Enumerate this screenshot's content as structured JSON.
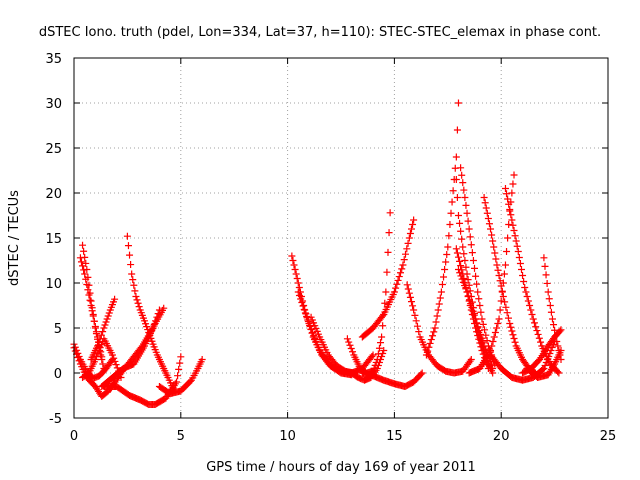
{
  "chart_data": {
    "type": "scatter",
    "title": "dSTEC Iono. truth (pdel, Lon=334, Lat=37, h=110): STEC-STEC_elemax in phase cont.",
    "xlabel": "GPS time / hours of day 169 of year 2011",
    "ylabel": "dSTEC  / TECUs",
    "xlim": [
      0,
      25
    ],
    "ylim": [
      -5,
      35
    ],
    "xticks": [
      0,
      5,
      10,
      15,
      20,
      25
    ],
    "yticks": [
      -5,
      0,
      5,
      10,
      15,
      20,
      25,
      30,
      35
    ],
    "xtick_labels": [
      "0",
      "5",
      "10",
      "15",
      "20",
      "25"
    ],
    "ytick_labels": [
      "-5",
      "0",
      "5",
      "10",
      "15",
      "20",
      "25",
      "30",
      "35"
    ],
    "grid": true,
    "legend": "none",
    "marker": "plus",
    "color": "#ff0000",
    "series": [
      {
        "x": [
          0.0,
          0.3,
          0.6,
          0.9,
          1.2,
          1.5,
          1.8
        ],
        "y": [
          3.2,
          1.5,
          0.2,
          -0.6,
          -0.3,
          0.5,
          1.5
        ]
      },
      {
        "x": [
          0.4,
          0.6,
          0.8,
          1.0,
          1.2,
          1.4
        ],
        "y": [
          14.2,
          11.5,
          8.0,
          5.0,
          2.5,
          0.5
        ]
      },
      {
        "x": [
          0.3,
          0.5,
          0.8,
          1.1,
          1.3
        ],
        "y": [
          12.8,
          11.0,
          7.5,
          4.0,
          1.8
        ]
      },
      {
        "x": [
          0.0,
          0.3,
          0.6,
          1.0,
          1.3,
          1.6,
          1.9
        ],
        "y": [
          2.8,
          1.0,
          -0.5,
          -1.5,
          -2.6,
          -2.0,
          -1.0
        ]
      },
      {
        "x": [
          0.4,
          0.7,
          1.0,
          1.4,
          1.8,
          2.2
        ],
        "y": [
          -0.5,
          0.0,
          1.5,
          3.8,
          2.0,
          -0.5
        ]
      },
      {
        "x": [
          0.8,
          1.1,
          1.4,
          1.7,
          1.9
        ],
        "y": [
          1.5,
          3.0,
          5.0,
          7.0,
          8.2
        ]
      },
      {
        "x": [
          2.5,
          2.7,
          2.9,
          3.1,
          3.3,
          3.5,
          3.7,
          3.9,
          4.1,
          4.4,
          4.7
        ],
        "y": [
          15.2,
          11.0,
          8.5,
          7.0,
          5.8,
          4.5,
          3.2,
          2.0,
          1.0,
          -0.5,
          -2.0
        ]
      },
      {
        "x": [
          1.3,
          1.8,
          2.3,
          2.8,
          3.3,
          3.8,
          4.2
        ],
        "y": [
          -1.5,
          -0.5,
          0.5,
          1.0,
          3.0,
          5.5,
          7.2
        ]
      },
      {
        "x": [
          1.7,
          2.2,
          2.7,
          3.2,
          3.7,
          4.0
        ],
        "y": [
          -1.8,
          0.0,
          1.5,
          3.0,
          5.0,
          7.0
        ]
      },
      {
        "x": [
          1.4,
          2.0,
          2.6,
          3.1,
          3.5,
          3.8,
          4.3,
          4.8,
          5.0
        ],
        "y": [
          -1.5,
          -1.5,
          -2.5,
          -3.0,
          -3.5,
          -3.5,
          -2.8,
          -1.0,
          1.8
        ]
      },
      {
        "x": [
          4.0,
          4.5,
          5.0,
          5.5,
          5.8,
          6.0
        ],
        "y": [
          -1.5,
          -2.3,
          -2.0,
          -0.8,
          0.5,
          1.5
        ]
      },
      {
        "x": [
          10.2,
          10.5,
          10.8,
          11.2,
          11.6,
          12.0,
          12.5,
          13.0,
          13.5,
          14.0
        ],
        "y": [
          13.0,
          10.0,
          7.0,
          4.0,
          2.0,
          0.8,
          0.2,
          0.0,
          0.5,
          2.0
        ]
      },
      {
        "x": [
          10.5,
          11.0,
          11.5,
          12.0,
          12.5,
          13.0
        ],
        "y": [
          9.0,
          5.5,
          2.5,
          0.8,
          0.0,
          -0.2
        ]
      },
      {
        "x": [
          11.1,
          11.5,
          11.9,
          12.3,
          12.7,
          13.1
        ],
        "y": [
          6.2,
          4.0,
          2.0,
          0.8,
          0.2,
          0.0
        ]
      },
      {
        "x": [
          12.8,
          13.1,
          13.4,
          13.7,
          14.0,
          14.2,
          14.4,
          14.6,
          14.8
        ],
        "y": [
          3.8,
          2.0,
          0.5,
          0.0,
          0.2,
          1.5,
          4.0,
          9.0,
          17.8
        ]
      },
      {
        "x": [
          13.0,
          13.3,
          13.6,
          13.9,
          14.2,
          14.5
        ],
        "y": [
          0.0,
          -0.5,
          -0.8,
          -0.5,
          0.5,
          2.5
        ]
      },
      {
        "x": [
          13.5,
          14.0,
          14.5,
          15.0,
          15.4,
          15.7,
          15.9
        ],
        "y": [
          4.0,
          5.0,
          6.5,
          9.0,
          12.0,
          15.0,
          17.0
        ]
      },
      {
        "x": [
          13.5,
          14.0,
          14.5,
          15.0,
          15.5,
          15.9,
          16.3
        ],
        "y": [
          0.0,
          -0.3,
          -0.8,
          -1.2,
          -1.5,
          -1.0,
          0.0
        ]
      },
      {
        "x": [
          15.6,
          15.9,
          16.2,
          16.6,
          17.0,
          17.4,
          17.8,
          18.2,
          18.6
        ],
        "y": [
          9.8,
          7.0,
          4.0,
          2.0,
          0.8,
          0.2,
          0.0,
          0.2,
          1.5
        ]
      },
      {
        "x": [
          16.5,
          16.9,
          17.2,
          17.5,
          17.7,
          17.9,
          18.0
        ],
        "y": [
          2.0,
          5.0,
          9.0,
          14.0,
          19.0,
          24.0,
          30.0
        ]
      },
      {
        "x": [
          17.9,
          18.0,
          18.2,
          18.4,
          18.6,
          18.8,
          19.0,
          19.2,
          19.4,
          19.6
        ],
        "y": [
          21.5,
          17.5,
          14.0,
          11.0,
          8.5,
          6.0,
          4.0,
          2.5,
          1.0,
          0.0
        ]
      },
      {
        "x": [
          18.1,
          18.3,
          18.5,
          18.7,
          18.9,
          19.1,
          19.4,
          19.7
        ],
        "y": [
          22.8,
          19.5,
          16.0,
          12.5,
          9.0,
          6.0,
          3.0,
          1.0
        ]
      },
      {
        "x": [
          17.9,
          18.2,
          18.5,
          18.8,
          19.1,
          19.4
        ],
        "y": [
          13.8,
          11.0,
          8.0,
          5.0,
          2.5,
          0.5
        ]
      },
      {
        "x": [
          18.0,
          18.4,
          18.8,
          19.2,
          19.6
        ],
        "y": [
          11.5,
          9.0,
          6.0,
          3.0,
          0.5
        ]
      },
      {
        "x": [
          18.5,
          19.0,
          19.5,
          19.9,
          20.2,
          20.4,
          20.6
        ],
        "y": [
          0.0,
          0.5,
          2.5,
          6.0,
          12.0,
          18.0,
          22.0
        ]
      },
      {
        "x": [
          19.2,
          19.5,
          19.8,
          20.1,
          20.4,
          20.7,
          21.0,
          21.3,
          21.6
        ],
        "y": [
          19.5,
          16.0,
          12.0,
          8.5,
          5.5,
          3.0,
          1.5,
          0.5,
          0.0
        ]
      },
      {
        "x": [
          20.2,
          20.5,
          20.8,
          21.1,
          21.5,
          21.9,
          22.3,
          22.7
        ],
        "y": [
          20.5,
          17.0,
          13.5,
          9.5,
          6.0,
          3.0,
          1.0,
          0.0
        ]
      },
      {
        "x": [
          19.5,
          20.0,
          20.5,
          21.0,
          21.5,
          22.0,
          22.5
        ],
        "y": [
          2.0,
          0.5,
          -0.5,
          -0.8,
          -0.5,
          0.5,
          3.5
        ]
      },
      {
        "x": [
          21.0,
          21.4,
          21.8,
          22.2,
          22.5,
          22.8
        ],
        "y": [
          0.0,
          0.5,
          1.5,
          3.0,
          4.0,
          4.8
        ]
      },
      {
        "x": [
          22.0,
          22.2,
          22.4,
          22.6,
          22.8
        ],
        "y": [
          12.8,
          9.0,
          6.0,
          3.5,
          1.5
        ]
      },
      {
        "x": [
          21.2,
          21.7,
          22.2,
          22.5,
          22.8
        ],
        "y": [
          0.5,
          -0.5,
          -0.2,
          1.0,
          2.5
        ]
      }
    ]
  }
}
